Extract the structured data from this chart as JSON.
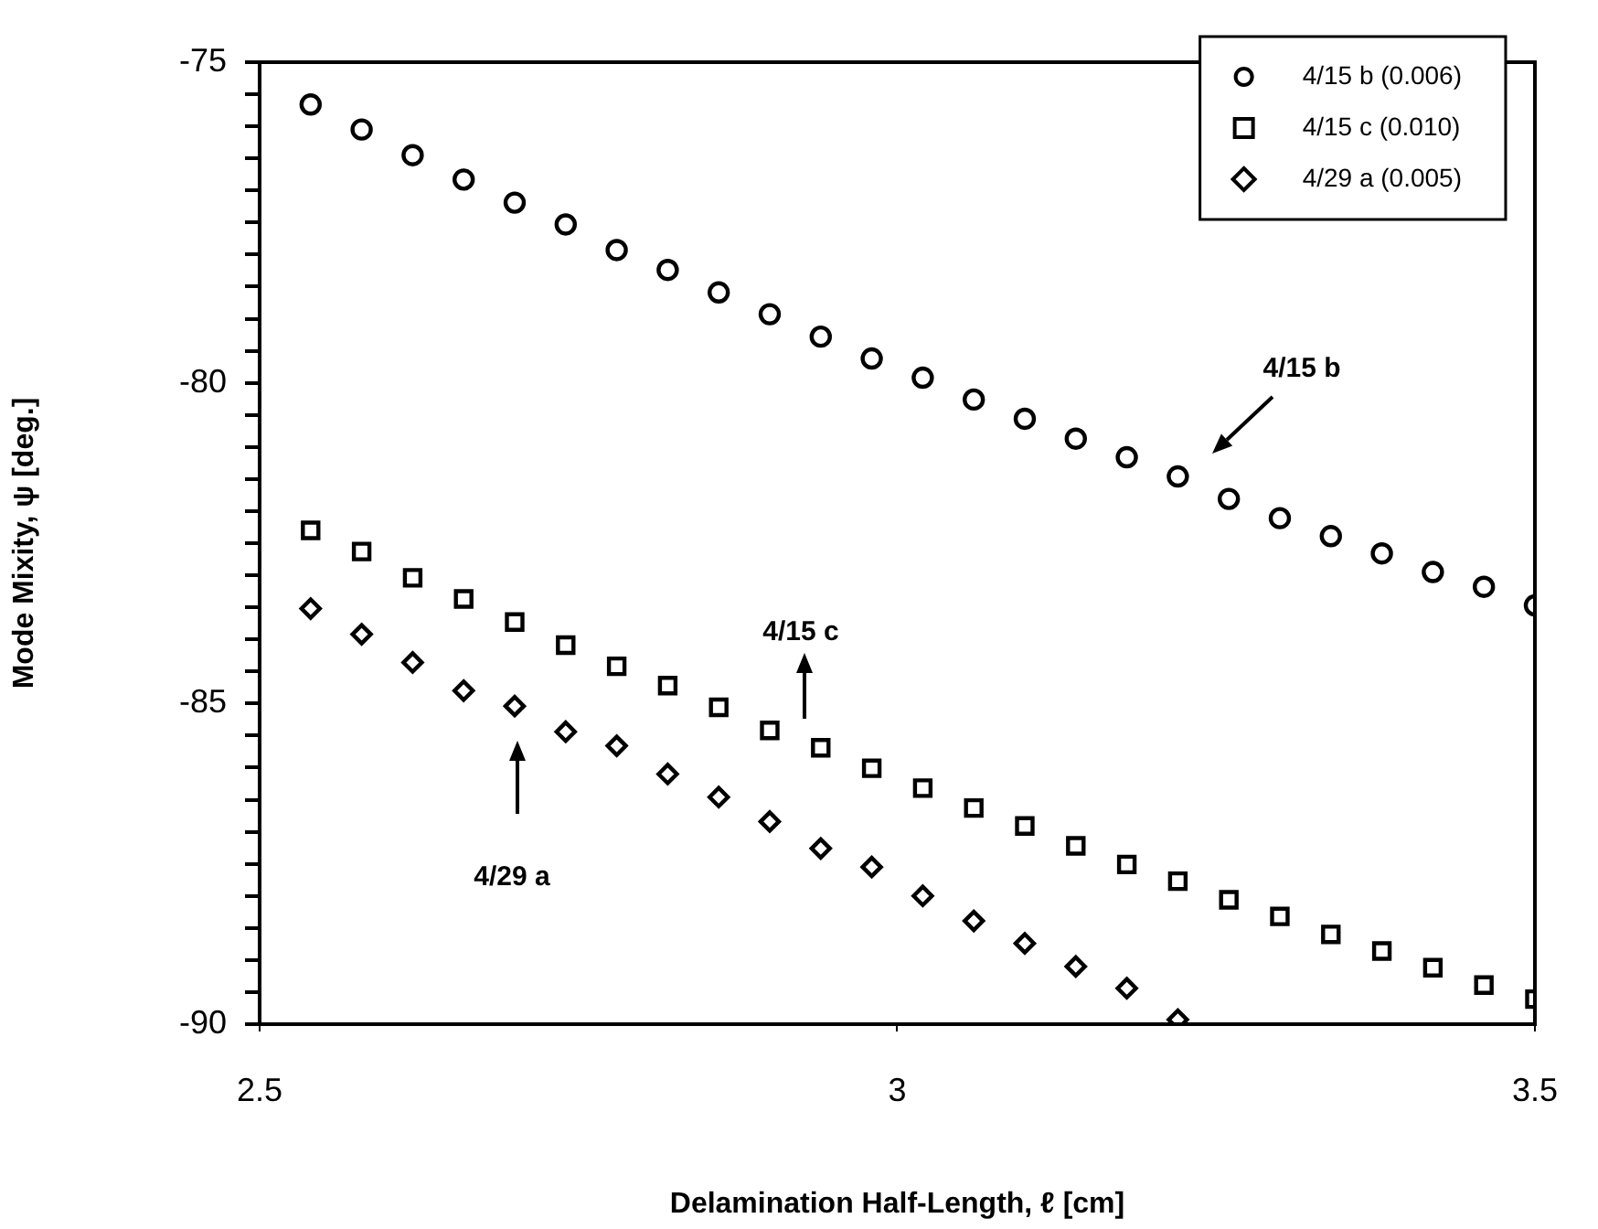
{
  "chart_data": {
    "type": "scatter",
    "xlabel": "Delamination Half-Length, ℓ [cm]",
    "ylabel": "Mode Mixity, ψ [deg.]",
    "xlim": [
      2.5,
      3.5
    ],
    "xticks": [
      2.5,
      3,
      3.5
    ],
    "ylim": [
      -90,
      -75
    ],
    "yticks": [
      -90,
      {
        "value": -89.5,
        "label": null
      },
      {
        "value": -89,
        "label": null
      },
      {
        "value": -88.5,
        "label": null
      },
      {
        "value": -88,
        "label": null
      },
      {
        "value": -87.5,
        "label": null
      },
      {
        "value": -87,
        "label": null
      },
      {
        "value": -86.5,
        "label": null
      },
      {
        "value": -86,
        "label": null
      },
      {
        "value": -85.5,
        "label": null
      },
      -85,
      {
        "value": -84.5,
        "label": null
      },
      {
        "value": -84,
        "label": null
      },
      {
        "value": -83.5,
        "label": null
      },
      {
        "value": -83,
        "label": null
      },
      {
        "value": -82.5,
        "label": null
      },
      {
        "value": -82,
        "label": null
      },
      {
        "value": -81.5,
        "label": null
      },
      {
        "value": -81,
        "label": null
      },
      {
        "value": -80.5,
        "label": null
      },
      -80,
      {
        "value": -79.5,
        "label": null
      },
      {
        "value": -79,
        "label": null
      },
      {
        "value": -78.5,
        "label": null
      },
      {
        "value": -78,
        "label": null
      },
      {
        "value": -77.5,
        "label": null
      },
      {
        "value": -77,
        "label": null
      },
      {
        "value": -76.5,
        "label": null
      },
      {
        "value": -76,
        "label": null
      },
      {
        "value": -75.5,
        "label": null
      },
      -75
    ],
    "grid": false,
    "legend": "top right",
    "series": [
      {
        "name": "4/15 b (0.006)",
        "color": "#000000",
        "marker": "circle",
        "x": [
          2.54,
          2.58,
          2.62,
          2.66,
          2.7,
          2.74,
          2.78,
          2.82,
          2.86,
          2.9,
          2.94,
          2.98,
          3.02,
          3.06,
          3.1,
          3.14,
          3.18,
          3.22,
          3.26,
          3.3,
          3.34,
          3.38,
          3.42,
          3.46,
          3.5
        ],
        "values": [
          -75.66,
          -76.05,
          -76.45,
          -76.83,
          -77.19,
          -77.53,
          -77.93,
          -78.24,
          -78.59,
          -78.93,
          -79.28,
          -79.62,
          -79.92,
          -80.26,
          -80.56,
          -80.87,
          -81.16,
          -81.46,
          -81.81,
          -82.11,
          -82.39,
          -82.66,
          -82.95,
          -83.18,
          -83.47
        ]
      },
      {
        "name": "4/15 c (0.010)",
        "color": "#000000",
        "marker": "square",
        "x": [
          2.54,
          2.58,
          2.62,
          2.66,
          2.7,
          2.74,
          2.78,
          2.82,
          2.86,
          2.9,
          2.94,
          2.98,
          3.02,
          3.06,
          3.1,
          3.14,
          3.18,
          3.22,
          3.26,
          3.3,
          3.34,
          3.38,
          3.42,
          3.46,
          3.5
        ],
        "values": [
          -82.3,
          -82.63,
          -83.04,
          -83.37,
          -83.73,
          -84.09,
          -84.42,
          -84.72,
          -85.06,
          -85.42,
          -85.69,
          -86.01,
          -86.32,
          -86.63,
          -86.91,
          -87.22,
          -87.51,
          -87.77,
          -88.06,
          -88.32,
          -88.6,
          -88.86,
          -89.12,
          -89.39,
          -89.61
        ]
      },
      {
        "name": "4/29 a (0.005)",
        "color": "#000000",
        "marker": "diamond",
        "x": [
          2.54,
          2.58,
          2.62,
          2.66,
          2.7,
          2.74,
          2.78,
          2.82,
          2.86,
          2.9,
          2.94,
          2.98,
          3.02,
          3.06,
          3.1,
          3.14,
          3.18,
          3.22
        ],
        "values": [
          -83.52,
          -83.92,
          -84.36,
          -84.8,
          -85.04,
          -85.44,
          -85.66,
          -86.1,
          -86.46,
          -86.84,
          -87.26,
          -87.55,
          -88.0,
          -88.39,
          -88.74,
          -89.1,
          -89.44,
          -89.93
        ]
      }
    ],
    "annotations": [
      "4/15 b",
      "4/15 c",
      "4/29 a"
    ]
  }
}
